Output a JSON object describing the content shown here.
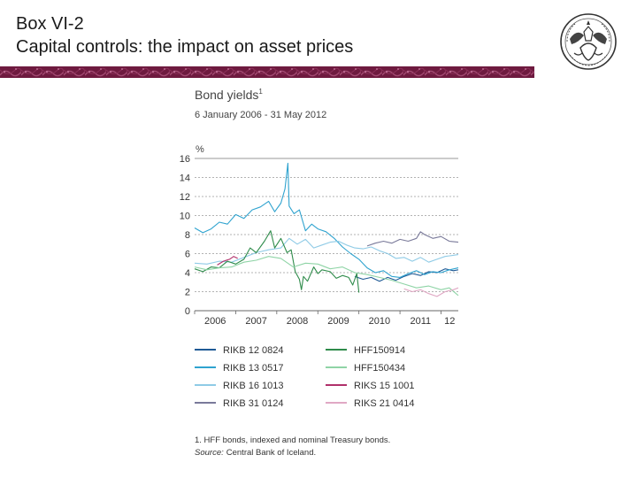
{
  "slide": {
    "title_line1": "Box VI-2",
    "title_line2": "Capital controls: the impact on asset prices"
  },
  "colors": {
    "header_band": "#7a1f45",
    "grid": "#9a9a9a",
    "text": "#333333"
  },
  "chart_data": {
    "type": "line",
    "title": "Bond yields",
    "title_sup": "1",
    "subtitle": "6 January 2006 - 31 May 2012",
    "ylabel": "%",
    "ylim": [
      0,
      16
    ],
    "yticks": [
      "0",
      "2",
      "4",
      "6",
      "8",
      "10",
      "12",
      "14",
      "16"
    ],
    "xticks": [
      "2006",
      "2007",
      "2008",
      "2009",
      "2010",
      "2011",
      "12"
    ],
    "xlim": [
      2006.0,
      2012.42
    ],
    "grid": "horizontal dashed",
    "legend_position": "bottom",
    "series": [
      {
        "name": "RIKB 12 0824",
        "color": "#1f5a96",
        "points": [
          [
            2009.9,
            3.6
          ],
          [
            2010.1,
            3.3
          ],
          [
            2010.3,
            3.5
          ],
          [
            2010.5,
            3.1
          ],
          [
            2010.7,
            3.5
          ],
          [
            2010.9,
            3.2
          ],
          [
            2011.1,
            3.6
          ],
          [
            2011.3,
            3.9
          ],
          [
            2011.5,
            3.7
          ],
          [
            2011.7,
            4.1
          ],
          [
            2011.9,
            4.0
          ],
          [
            2012.1,
            4.4
          ],
          [
            2012.3,
            4.2
          ],
          [
            2012.42,
            4.3
          ]
        ]
      },
      {
        "name": "RIKB 13 0517",
        "color": "#2fa3cf",
        "points": [
          [
            2006.0,
            8.7
          ],
          [
            2006.2,
            8.2
          ],
          [
            2006.4,
            8.6
          ],
          [
            2006.6,
            9.3
          ],
          [
            2006.8,
            9.1
          ],
          [
            2007.0,
            10.1
          ],
          [
            2007.2,
            9.7
          ],
          [
            2007.4,
            10.6
          ],
          [
            2007.6,
            10.9
          ],
          [
            2007.8,
            11.5
          ],
          [
            2007.95,
            10.4
          ],
          [
            2008.1,
            11.3
          ],
          [
            2008.2,
            12.8
          ],
          [
            2008.27,
            15.5
          ],
          [
            2008.3,
            11.0
          ],
          [
            2008.42,
            10.2
          ],
          [
            2008.55,
            10.6
          ],
          [
            2008.7,
            8.4
          ],
          [
            2008.85,
            9.1
          ],
          [
            2009.0,
            8.6
          ],
          [
            2009.2,
            8.3
          ],
          [
            2009.4,
            7.6
          ],
          [
            2009.6,
            6.7
          ],
          [
            2009.8,
            6.0
          ],
          [
            2010.0,
            5.4
          ],
          [
            2010.2,
            4.5
          ],
          [
            2010.4,
            4.0
          ],
          [
            2010.6,
            4.2
          ],
          [
            2010.8,
            3.6
          ],
          [
            2011.0,
            3.5
          ],
          [
            2011.2,
            3.9
          ],
          [
            2011.4,
            4.2
          ],
          [
            2011.6,
            3.8
          ],
          [
            2011.8,
            4.1
          ],
          [
            2012.0,
            4.0
          ],
          [
            2012.2,
            4.3
          ],
          [
            2012.42,
            4.5
          ]
        ]
      },
      {
        "name": "RIKB 16 1013",
        "color": "#8fcbe6",
        "points": [
          [
            2006.0,
            5.0
          ],
          [
            2006.3,
            4.9
          ],
          [
            2006.6,
            5.2
          ],
          [
            2006.9,
            5.1
          ],
          [
            2007.2,
            5.6
          ],
          [
            2007.5,
            6.1
          ],
          [
            2007.8,
            6.4
          ],
          [
            2008.1,
            6.6
          ],
          [
            2008.3,
            7.6
          ],
          [
            2008.5,
            7.0
          ],
          [
            2008.7,
            7.5
          ],
          [
            2008.9,
            6.6
          ],
          [
            2009.1,
            6.9
          ],
          [
            2009.3,
            7.2
          ],
          [
            2009.5,
            7.3
          ],
          [
            2009.7,
            6.9
          ],
          [
            2009.9,
            6.6
          ],
          [
            2010.1,
            6.5
          ],
          [
            2010.3,
            6.7
          ],
          [
            2010.5,
            6.3
          ],
          [
            2010.7,
            6.0
          ],
          [
            2010.9,
            5.5
          ],
          [
            2011.1,
            5.6
          ],
          [
            2011.3,
            5.2
          ],
          [
            2011.5,
            5.6
          ],
          [
            2011.7,
            5.1
          ],
          [
            2011.9,
            5.4
          ],
          [
            2012.1,
            5.7
          ],
          [
            2012.42,
            5.9
          ]
        ]
      },
      {
        "name": "RIKB 31 0124",
        "color": "#7a7a9a",
        "points": [
          [
            2010.2,
            6.8
          ],
          [
            2010.4,
            7.1
          ],
          [
            2010.6,
            7.3
          ],
          [
            2010.8,
            7.1
          ],
          [
            2011.0,
            7.5
          ],
          [
            2011.2,
            7.3
          ],
          [
            2011.4,
            7.6
          ],
          [
            2011.5,
            8.3
          ],
          [
            2011.6,
            8.0
          ],
          [
            2011.8,
            7.6
          ],
          [
            2012.0,
            7.8
          ],
          [
            2012.2,
            7.3
          ],
          [
            2012.42,
            7.2
          ]
        ]
      },
      {
        "name": "HFF150914",
        "color": "#2e8b4a",
        "points": [
          [
            2006.0,
            4.4
          ],
          [
            2006.2,
            4.1
          ],
          [
            2006.4,
            4.6
          ],
          [
            2006.6,
            4.5
          ],
          [
            2006.8,
            5.2
          ],
          [
            2007.0,
            4.9
          ],
          [
            2007.2,
            5.4
          ],
          [
            2007.35,
            6.6
          ],
          [
            2007.5,
            6.1
          ],
          [
            2007.7,
            7.3
          ],
          [
            2007.85,
            8.4
          ],
          [
            2007.95,
            6.6
          ],
          [
            2008.1,
            7.6
          ],
          [
            2008.25,
            6.1
          ],
          [
            2008.35,
            6.4
          ],
          [
            2008.45,
            4.1
          ],
          [
            2008.55,
            3.3
          ],
          [
            2008.6,
            2.2
          ],
          [
            2008.65,
            3.6
          ],
          [
            2008.75,
            3.1
          ],
          [
            2008.9,
            4.6
          ],
          [
            2009.0,
            3.9
          ],
          [
            2009.1,
            4.3
          ],
          [
            2009.3,
            4.1
          ],
          [
            2009.45,
            3.4
          ],
          [
            2009.6,
            3.7
          ],
          [
            2009.75,
            3.5
          ],
          [
            2009.85,
            2.7
          ],
          [
            2009.95,
            3.9
          ],
          [
            2010.0,
            1.9
          ]
        ]
      },
      {
        "name": "HFF150434",
        "color": "#8fd4a6",
        "points": [
          [
            2006.0,
            4.6
          ],
          [
            2006.3,
            4.3
          ],
          [
            2006.6,
            4.5
          ],
          [
            2006.9,
            4.6
          ],
          [
            2007.2,
            5.1
          ],
          [
            2007.5,
            5.3
          ],
          [
            2007.8,
            5.7
          ],
          [
            2008.1,
            5.5
          ],
          [
            2008.4,
            4.6
          ],
          [
            2008.7,
            5.0
          ],
          [
            2009.0,
            4.9
          ],
          [
            2009.3,
            4.4
          ],
          [
            2009.6,
            4.6
          ],
          [
            2009.9,
            4.0
          ],
          [
            2010.2,
            3.8
          ],
          [
            2010.5,
            3.5
          ],
          [
            2010.8,
            3.2
          ],
          [
            2011.1,
            2.8
          ],
          [
            2011.4,
            2.4
          ],
          [
            2011.7,
            2.6
          ],
          [
            2012.0,
            2.2
          ],
          [
            2012.2,
            2.4
          ],
          [
            2012.42,
            1.6
          ]
        ]
      },
      {
        "name": "RIKS 15 1001",
        "color": "#b0306a",
        "points": [
          [
            2006.55,
            4.8
          ],
          [
            2006.7,
            5.2
          ],
          [
            2006.85,
            5.4
          ],
          [
            2006.95,
            5.7
          ],
          [
            2007.05,
            5.5
          ]
        ]
      },
      {
        "name": "RIKS 21 0414",
        "color": "#e0a8c4",
        "points": [
          [
            2011.1,
            2.3
          ],
          [
            2011.3,
            2.0
          ],
          [
            2011.5,
            2.2
          ],
          [
            2011.7,
            1.8
          ],
          [
            2011.9,
            1.5
          ],
          [
            2012.1,
            2.0
          ],
          [
            2012.3,
            2.2
          ],
          [
            2012.42,
            2.4
          ]
        ]
      }
    ],
    "footnote": "1. HFF bonds, indexed and nominal Treasury bonds.",
    "source_label": "Source:",
    "source_text": "Central Bank of Iceland."
  }
}
